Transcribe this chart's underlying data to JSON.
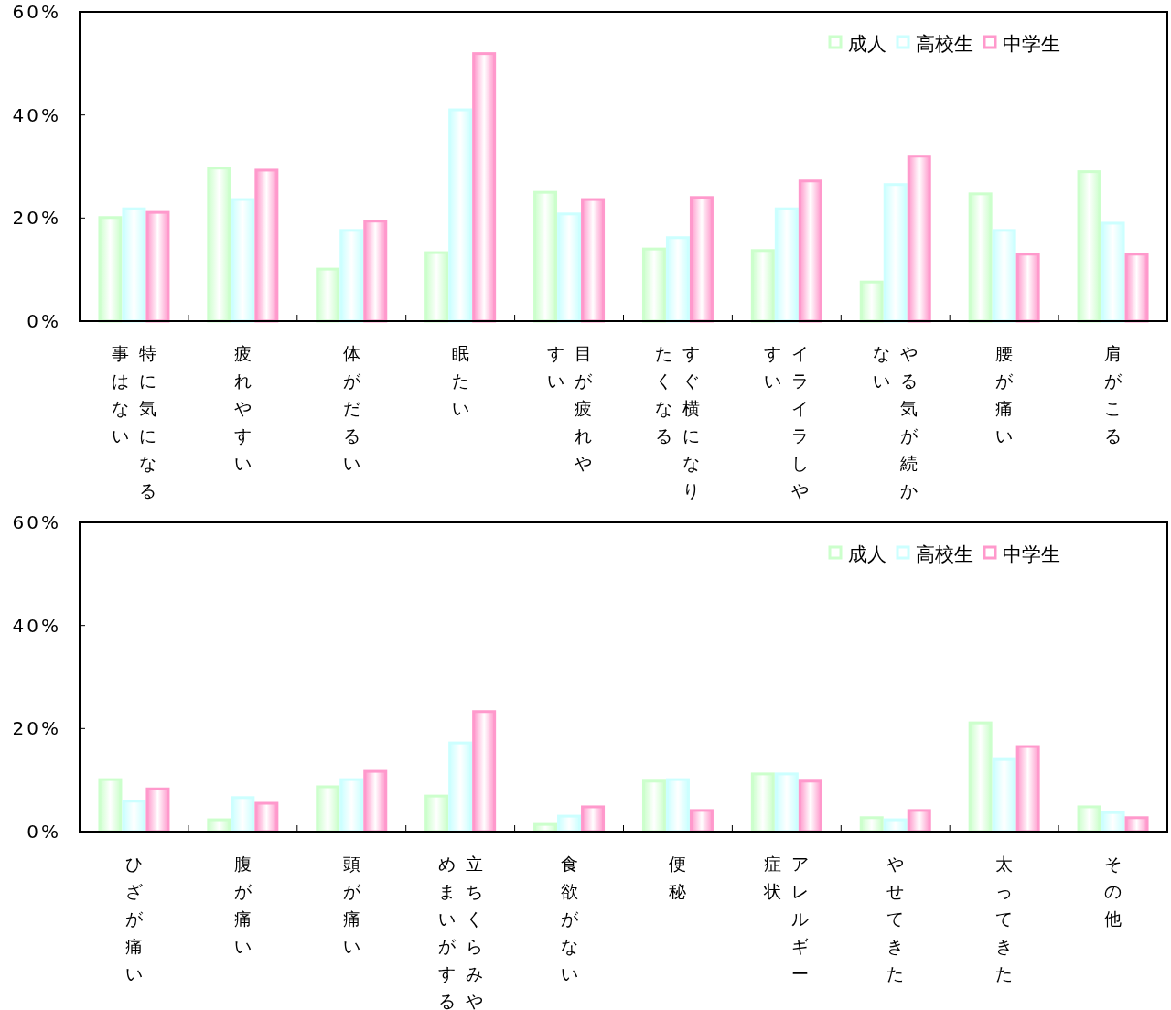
{
  "chart_data": [
    {
      "type": "bar",
      "categories": [
        "特に気になる事はない",
        "疲れやすい",
        "体がだるい",
        "眠たい",
        "目が疲れやすい",
        "すぐ横になりたくなる",
        "イライラしやすい",
        "やる気が続かない",
        "腰が痛い",
        "肩がこる"
      ],
      "series": [
        {
          "name": "成人",
          "color": "#ccffcc",
          "values": [
            20.1,
            29.7,
            10.1,
            13.3,
            25.0,
            14.0,
            13.7,
            7.6,
            24.7,
            29.0
          ]
        },
        {
          "name": "高校生",
          "color": "#ccffff",
          "values": [
            21.8,
            23.6,
            17.6,
            41.0,
            20.8,
            16.2,
            21.8,
            26.5,
            17.6,
            19.0
          ]
        },
        {
          "name": "中学生",
          "color": "#ff99cc",
          "values": [
            21.1,
            29.3,
            19.4,
            51.9,
            23.6,
            24.0,
            27.2,
            32.0,
            13.0,
            13.0
          ]
        }
      ],
      "ylim": [
        0,
        60
      ],
      "yticks": [
        {
          "value": 0,
          "label": "0%"
        },
        {
          "value": 20,
          "label": "20%"
        },
        {
          "value": 40,
          "label": "40%"
        },
        {
          "value": 60,
          "label": "60%"
        }
      ],
      "legend": "top right",
      "grid": false
    },
    {
      "type": "bar",
      "categories": [
        "ひざが痛い",
        "腹が痛い",
        "頭が痛い",
        "立ちくらみやめまいがする",
        "食欲がない",
        "便秘",
        "アレルギー症状",
        "やせてきた",
        "太ってきた",
        "その他"
      ],
      "series": [
        {
          "name": "成人",
          "color": "#ccffcc",
          "values": [
            10.1,
            2.3,
            8.7,
            6.9,
            1.4,
            9.8,
            11.2,
            2.7,
            21.1,
            4.8
          ]
        },
        {
          "name": "高校生",
          "color": "#ccffff",
          "values": [
            5.9,
            6.6,
            10.1,
            17.2,
            3.0,
            10.1,
            11.2,
            2.3,
            14.0,
            3.7
          ]
        },
        {
          "name": "中学生",
          "color": "#ff99cc",
          "values": [
            8.3,
            5.5,
            11.7,
            23.3,
            4.8,
            4.1,
            9.8,
            4.1,
            16.5,
            2.7
          ]
        }
      ],
      "ylim": [
        0,
        60
      ],
      "yticks": [
        {
          "value": 0,
          "label": "0%"
        },
        {
          "value": 20,
          "label": "20%"
        },
        {
          "value": 40,
          "label": "40%"
        },
        {
          "value": 60,
          "label": "60%"
        }
      ],
      "legend": "top right",
      "grid": false
    }
  ]
}
